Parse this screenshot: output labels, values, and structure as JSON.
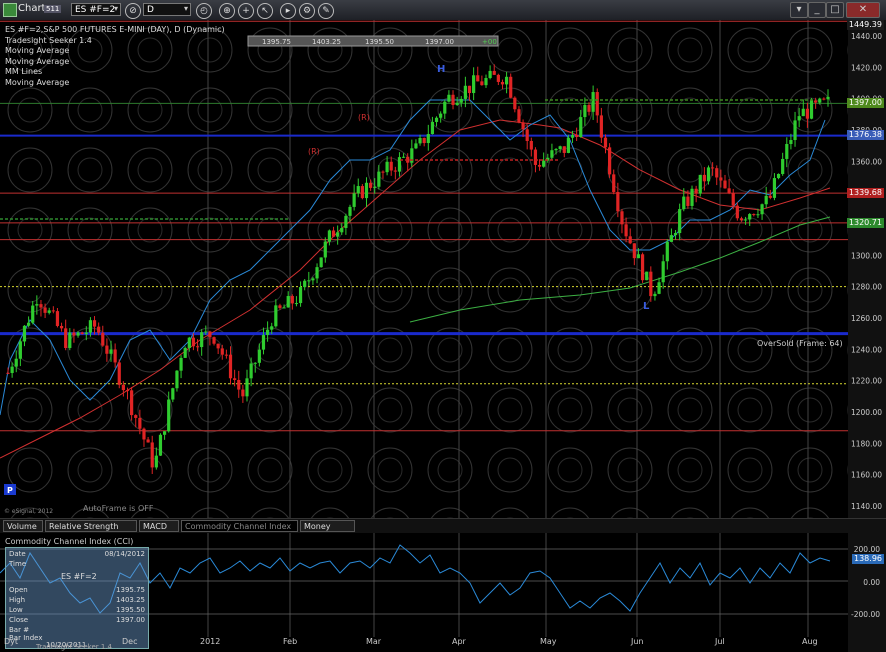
{
  "window": {
    "title": "Chart",
    "badge": "511",
    "symbol": "ES #F=2",
    "interval": "D"
  },
  "chart": {
    "header": "ES #F=2,S&P 500 FUTURES E-MINI (DAY), D (Dynamic)",
    "studies": [
      "Tradesight Seeker 1.4",
      "Moving Average",
      "Moving Average",
      "MM Lines",
      "Moving Average"
    ],
    "ohlc_bar": [
      "1395.75",
      "1403.25",
      "1395.50",
      "1397.00",
      "+00"
    ],
    "annotations": {
      "high_marker": "H",
      "low_marker": "L",
      "paint_marker": "P",
      "oversold": "OverSold (Frame: 64)",
      "autoframe": "AutoFrame is OFF",
      "copyright": "© eSignal, 2012",
      "r_labels": [
        "(R)",
        "(R)"
      ]
    },
    "y_labels": [
      "1440.00",
      "1420.00",
      "1400.00",
      "1380.00",
      "1360.00",
      "1340.00",
      "1320.00",
      "1300.00",
      "1280.00",
      "1260.00",
      "1240.00",
      "1220.00",
      "1200.00",
      "1180.00",
      "1160.00",
      "1140.00"
    ],
    "price_tags": [
      {
        "text": "1449.39",
        "color": "#1a1a1a"
      },
      {
        "text": "1397.00",
        "color": "#4f8a1e"
      },
      {
        "text": "1376.38",
        "color": "#3a5db8"
      },
      {
        "text": "1339.68",
        "color": "#b02020"
      },
      {
        "text": "1320.71",
        "color": "#2d8a2d"
      }
    ]
  },
  "tabs": [
    "Volume",
    "Relative Strength Index",
    "MACD",
    "Commodity Channel Index (CCI)",
    "Money Flow"
  ],
  "active_tab": "Commodity Channel Index (CCI)",
  "cci": {
    "title": "Commodity Channel Index (CCI)",
    "y_labels": [
      "200.00",
      "0.00",
      "-200.00"
    ],
    "value_tag": "138.96",
    "info_rows": [
      "Date",
      "Time",
      "ES #F=2",
      "Open",
      "High",
      "Low",
      "Close",
      "Bar #",
      "Bar Index"
    ],
    "info_vals": [
      "08/14/2012",
      "",
      "",
      "1395.75",
      "1403.25",
      "1395.50",
      "1397.00",
      "",
      ""
    ],
    "info_footer": "Tradesight Seeker 1.4",
    "info_date": "10/20/2011"
  },
  "x_labels": [
    "Dec",
    "2012",
    "Feb",
    "Mar",
    "Apr",
    "May",
    "Jun",
    "Jul",
    "Aug"
  ],
  "x_axis_prefix": "Dyt",
  "chart_data": {
    "type": "candlestick",
    "title": "ES #F=2,S&P 500 FUTURES E-MINI (DAY), D (Dynamic)",
    "ylim": [
      1140,
      1450
    ],
    "close_path": [
      {
        "x": "Oct 20",
        "y": 1225
      },
      {
        "x": "Oct 27",
        "y": 1275
      },
      {
        "x": "Nov 3",
        "y": 1245
      },
      {
        "x": "Nov 10",
        "y": 1255
      },
      {
        "x": "Nov 17",
        "y": 1215
      },
      {
        "x": "Nov 25",
        "y": 1165
      },
      {
        "x": "Dec 2",
        "y": 1245
      },
      {
        "x": "Dec 9",
        "y": 1250
      },
      {
        "x": "Dec 16",
        "y": 1210
      },
      {
        "x": "Dec 23",
        "y": 1260
      },
      {
        "x": "Jan 6",
        "y": 1275
      },
      {
        "x": "Jan 20",
        "y": 1312
      },
      {
        "x": "Feb 3",
        "y": 1340
      },
      {
        "x": "Feb 17",
        "y": 1355
      },
      {
        "x": "Mar 2",
        "y": 1368
      },
      {
        "x": "Mar 16",
        "y": 1400
      },
      {
        "x": "Mar 26",
        "y": 1410
      },
      {
        "x": "Apr 2",
        "y": 1415
      },
      {
        "x": "Apr 10",
        "y": 1358
      },
      {
        "x": "Apr 24",
        "y": 1368
      },
      {
        "x": "May 1",
        "y": 1400
      },
      {
        "x": "May 16",
        "y": 1320
      },
      {
        "x": "Jun 1",
        "y": 1275
      },
      {
        "x": "Jun 15",
        "y": 1330
      },
      {
        "x": "Jul 3",
        "y": 1355
      },
      {
        "x": "Jul 12",
        "y": 1325
      },
      {
        "x": "Jul 25",
        "y": 1335
      },
      {
        "x": "Aug 6",
        "y": 1390
      },
      {
        "x": "Aug 14",
        "y": 1397
      }
    ],
    "horizontal_levels": [
      1449.39,
      1397,
      1376.38,
      1339.68,
      1320.71,
      1310,
      1280,
      1250,
      1218,
      1188
    ]
  }
}
